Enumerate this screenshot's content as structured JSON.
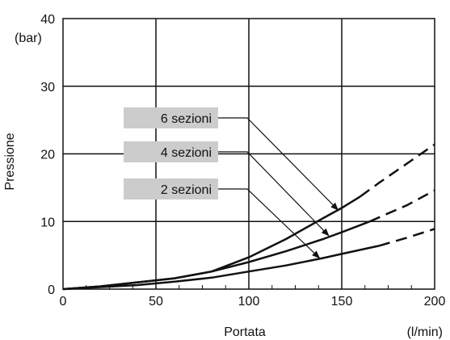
{
  "chart_data": {
    "type": "line",
    "title": "",
    "xlabel": "Portata",
    "xunit": "(l/min)",
    "ylabel": "Pressione",
    "yunit": "(bar)",
    "xlim": [
      0,
      200
    ],
    "ylim": [
      0,
      40
    ],
    "x_ticks": [
      "0",
      "50",
      "100",
      "150",
      "200"
    ],
    "y_ticks": [
      "0",
      "10",
      "20",
      "30",
      "40"
    ],
    "grid": true,
    "line_color": "#111111",
    "label_box_color": "#cccccc",
    "series": [
      {
        "name": "6 sezioni",
        "solid": [
          [
            0,
            0
          ],
          [
            20,
            0.4
          ],
          [
            40,
            1.0
          ],
          [
            60,
            1.6
          ],
          [
            80,
            2.6
          ],
          [
            100,
            4.7
          ],
          [
            120,
            7.4
          ],
          [
            140,
            10.5
          ],
          [
            150,
            12.0
          ],
          [
            160,
            13.7
          ]
        ],
        "dashed": [
          [
            160,
            13.7
          ],
          [
            170,
            15.7
          ],
          [
            180,
            17.6
          ],
          [
            190,
            19.5
          ],
          [
            200,
            21.4
          ]
        ],
        "arrow_tip": [
          148,
          11.7
        ]
      },
      {
        "name": "4 sezioni",
        "solid": [
          [
            0,
            0
          ],
          [
            20,
            0.4
          ],
          [
            40,
            1.0
          ],
          [
            60,
            1.6
          ],
          [
            80,
            2.6
          ],
          [
            100,
            4.0
          ],
          [
            120,
            5.6
          ],
          [
            140,
            7.4
          ],
          [
            150,
            8.4
          ],
          [
            165,
            10.0
          ]
        ],
        "dashed": [
          [
            165,
            10.0
          ],
          [
            175,
            11.2
          ],
          [
            185,
            12.4
          ],
          [
            200,
            14.6
          ]
        ],
        "arrow_tip": [
          143,
          7.9
        ]
      },
      {
        "name": "2 sezioni",
        "solid": [
          [
            0,
            0
          ],
          [
            20,
            0.3
          ],
          [
            40,
            0.6
          ],
          [
            60,
            1.1
          ],
          [
            80,
            1.7
          ],
          [
            100,
            2.6
          ],
          [
            120,
            3.5
          ],
          [
            140,
            4.6
          ],
          [
            150,
            5.2
          ],
          [
            170,
            6.4
          ]
        ],
        "dashed": [
          [
            170,
            6.4
          ],
          [
            185,
            7.6
          ],
          [
            200,
            8.9
          ]
        ],
        "arrow_tip": [
          138,
          4.6
        ]
      }
    ]
  }
}
